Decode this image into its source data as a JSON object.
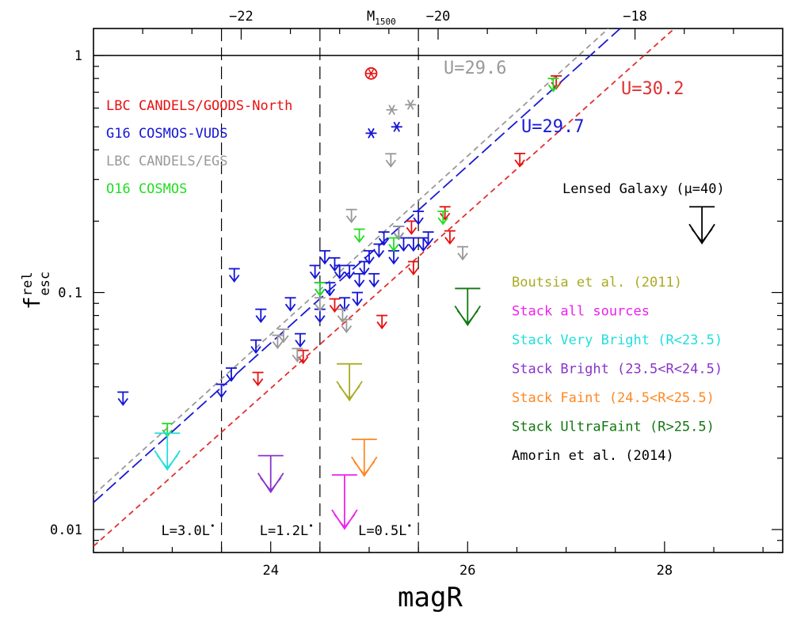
{
  "chart_data": {
    "type": "scatter",
    "xlabel": "magR",
    "ylabel": "f_esc^rel",
    "ylabel_main": "f",
    "ylabel_sup": "rel",
    "ylabel_sub": "esc",
    "top_axis_label": "M",
    "top_axis_label_sub": "1500",
    "xlim": [
      22.2,
      29.2
    ],
    "ylim": [
      0.008,
      1.3
    ],
    "yscale": "log",
    "x_ticks": [
      "24",
      "26",
      "28"
    ],
    "y_ticks": [
      "0.01",
      "0.1",
      "1"
    ],
    "top_ticks": [
      {
        "label": "−22",
        "mag": 23.7
      },
      {
        "label": "−20",
        "mag": 25.7
      },
      {
        "label": "−18",
        "mag": 27.7
      }
    ],
    "vertical_lines": [
      {
        "x": 23.5,
        "label": "L=3.0L",
        "sup": "•"
      },
      {
        "x": 24.5,
        "label": "L=1.2L",
        "sup": "•"
      },
      {
        "x": 25.5,
        "label": "L=0.5L",
        "sup": "•"
      }
    ],
    "horizontal_line_y": 1,
    "limit_lines": [
      {
        "label": "U=29.6",
        "color": "#999999",
        "dash": "dash",
        "x": [
          22.2,
          27.43
        ],
        "y": [
          0.014,
          1.3
        ]
      },
      {
        "label": "U=29.7",
        "color": "#1a1ad6",
        "dash": "longdash",
        "x": [
          22.2,
          27.55
        ],
        "y": [
          0.013,
          1.3
        ]
      },
      {
        "label": "U=30.2",
        "color": "#e03030",
        "dash": "dash",
        "x": [
          22.2,
          28.1
        ],
        "y": [
          0.0085,
          1.3
        ]
      }
    ],
    "legend": [
      {
        "name": "LBC CANDELS/GOODS-North",
        "color": "#e81010"
      },
      {
        "name": "G16 COSMOS-VUDS",
        "color": "#1414d6"
      },
      {
        "name": "LBC CANDELS/EGS",
        "color": "#999999"
      },
      {
        "name": "O16 COSMOS",
        "color": "#22dd22"
      }
    ],
    "legend_right": [
      {
        "name": "Boutsia et al. (2011)",
        "color": "#aaaa22"
      },
      {
        "name": "Stack all sources",
        "color": "#ee22ee"
      },
      {
        "name": "Stack Very Bright (R<23.5)",
        "color": "#22dddd"
      },
      {
        "name": "Stack Bright (23.5<R<24.5)",
        "color": "#8833cc"
      },
      {
        "name": "Stack Faint (24.5<R<25.5)",
        "color": "#ff8822"
      },
      {
        "name": "Stack UltraFaint (R>25.5)",
        "color": "#117711"
      },
      {
        "name": "Amorin et al. (2014)",
        "color": "#000000"
      }
    ],
    "lensed_label": "Lensed Galaxy (μ=40)",
    "series": [
      {
        "name": "LBC CANDELS/GOODS-North",
        "color": "#e81010",
        "marker": "arrow",
        "points": [
          [
            23.87,
            0.046
          ],
          [
            24.33,
            0.057
          ],
          [
            24.65,
            0.094
          ],
          [
            25.13,
            0.08
          ],
          [
            25.43,
            0.2
          ],
          [
            25.45,
            0.135
          ],
          [
            25.77,
            0.23
          ],
          [
            25.82,
            0.182
          ],
          [
            26.53,
            0.386
          ],
          [
            26.9,
            0.82
          ]
        ]
      },
      {
        "name": "G16 COSMOS-VUDS",
        "color": "#1414d6",
        "marker": "arrow",
        "points": [
          [
            22.5,
            0.038
          ],
          [
            23.5,
            0.041
          ],
          [
            23.6,
            0.048
          ],
          [
            23.63,
            0.126
          ],
          [
            23.85,
            0.063
          ],
          [
            23.9,
            0.085
          ],
          [
            24.2,
            0.095
          ],
          [
            24.3,
            0.067
          ],
          [
            24.45,
            0.13
          ],
          [
            24.5,
            0.11
          ],
          [
            24.5,
            0.085
          ],
          [
            24.55,
            0.15
          ],
          [
            24.6,
            0.11
          ],
          [
            24.65,
            0.14
          ],
          [
            24.7,
            0.13
          ],
          [
            24.75,
            0.095
          ],
          [
            24.8,
            0.13
          ],
          [
            24.88,
            0.1
          ],
          [
            24.9,
            0.12
          ],
          [
            24.95,
            0.135
          ],
          [
            25.0,
            0.15
          ],
          [
            25.05,
            0.12
          ],
          [
            25.1,
            0.16
          ],
          [
            25.15,
            0.18
          ],
          [
            25.25,
            0.15
          ],
          [
            25.3,
            0.19
          ],
          [
            25.35,
            0.17
          ],
          [
            25.45,
            0.17
          ],
          [
            25.5,
            0.22
          ],
          [
            25.55,
            0.17
          ],
          [
            25.6,
            0.18
          ]
        ]
      },
      {
        "name": "LBC CANDELS/EGS",
        "color": "#999999",
        "marker": "arrow",
        "points": [
          [
            24.07,
            0.066
          ],
          [
            24.13,
            0.07
          ],
          [
            24.27,
            0.058
          ],
          [
            24.5,
            0.095
          ],
          [
            24.73,
            0.085
          ],
          [
            24.77,
            0.077
          ],
          [
            24.82,
            0.224
          ],
          [
            25.22,
            0.385
          ],
          [
            25.3,
            0.19
          ],
          [
            25.95,
            0.156
          ]
        ]
      },
      {
        "name": "O16 COSMOS",
        "color": "#22dd22",
        "marker": "arrow",
        "points": [
          [
            22.95,
            0.028
          ],
          [
            24.5,
            0.11
          ],
          [
            24.9,
            0.185
          ],
          [
            25.25,
            0.17
          ],
          [
            25.75,
            0.22
          ],
          [
            26.87,
            0.8
          ]
        ]
      },
      {
        "name": "G16 COSMOS-VUDS detections",
        "color": "#1414d6",
        "marker": "star",
        "points": [
          [
            25.02,
            0.47
          ],
          [
            25.28,
            0.5
          ]
        ]
      },
      {
        "name": "LBC CANDELS/EGS detections",
        "color": "#999999",
        "marker": "star",
        "points": [
          [
            25.23,
            0.59
          ],
          [
            25.42,
            0.62
          ]
        ]
      },
      {
        "name": "LBC CANDELS/GOODS-North detection",
        "color": "#e81010",
        "marker": "circlestar",
        "points": [
          [
            25.02,
            0.84
          ]
        ]
      }
    ],
    "stacks": [
      {
        "name": "Stack Very Bright (R<23.5)",
        "color": "#22dddd",
        "x": 22.95,
        "y": 0.0255
      },
      {
        "name": "Stack Bright (23.5<R<24.5)",
        "color": "#8833cc",
        "x": 24.0,
        "y": 0.0205
      },
      {
        "name": "Stack all sources",
        "color": "#ee22ee",
        "x": 24.75,
        "y": 0.017
      },
      {
        "name": "Stack Faint (24.5<R<25.5)",
        "color": "#ff8822",
        "x": 24.95,
        "y": 0.024
      },
      {
        "name": "Boutsia et al. (2011)",
        "color": "#aaaa22",
        "x": 24.8,
        "y": 0.05
      },
      {
        "name": "Stack UltraFaint (R>25.5)",
        "color": "#117711",
        "x": 26.0,
        "y": 0.104
      },
      {
        "name": "Amorin et al. (2014)",
        "color": "#000000",
        "x": 28.38,
        "y": 0.23
      }
    ]
  }
}
